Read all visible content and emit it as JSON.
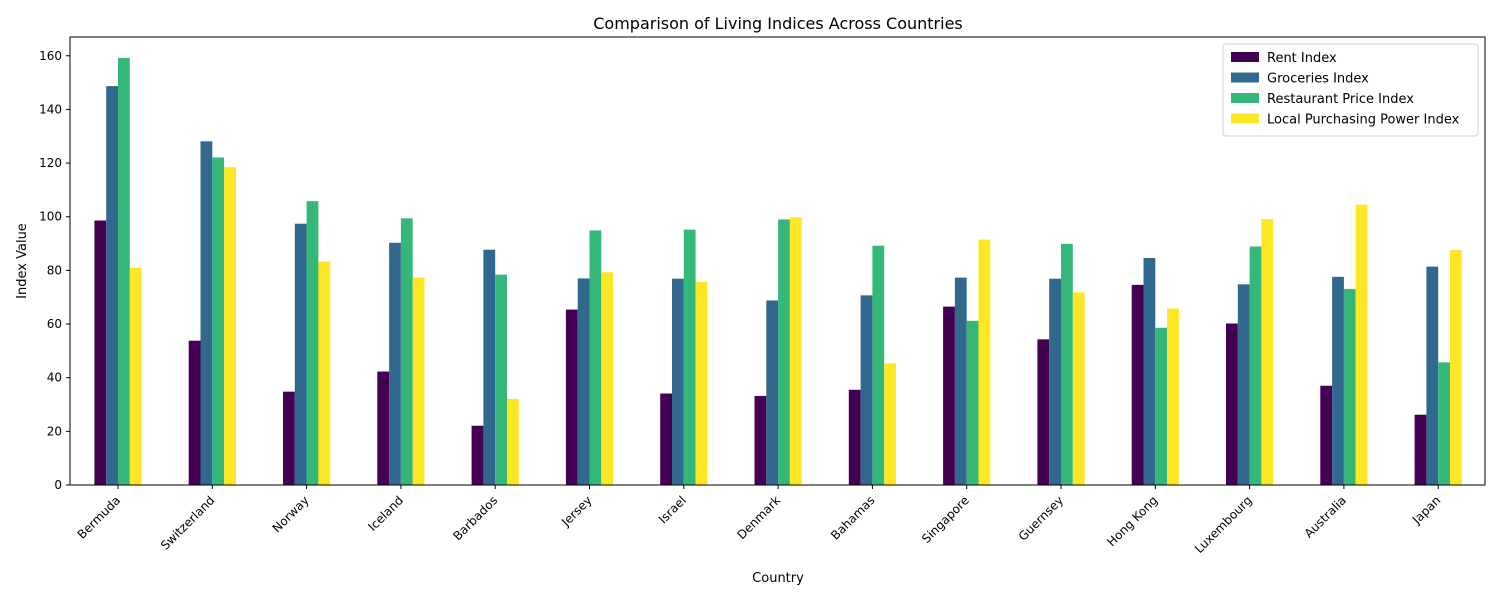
{
  "chart_data": {
    "type": "bar",
    "title": "Comparison of Living Indices Across Countries",
    "xlabel": "Country",
    "ylabel": "Index Value",
    "ylim": [
      0,
      167
    ],
    "yticks": [
      0,
      20,
      40,
      60,
      80,
      100,
      120,
      140,
      160
    ],
    "grid": false,
    "legend_position": "top-right",
    "categories": [
      "Bermuda",
      "Switzerland",
      "Norway",
      "Iceland",
      "Barbados",
      "Jersey",
      "Israel",
      "Denmark",
      "Bahamas",
      "Singapore",
      "Guernsey",
      "Hong Kong",
      "Luxembourg",
      "Australia",
      "Japan"
    ],
    "series": [
      {
        "name": "Rent Index",
        "color": "#440154",
        "values": [
          98.6,
          53.8,
          34.8,
          42.3,
          22.1,
          65.4,
          34.1,
          33.2,
          35.5,
          66.5,
          54.3,
          74.6,
          60.2,
          37.0,
          26.2
        ]
      },
      {
        "name": "Groceries Index",
        "color": "#31688e",
        "values": [
          148.7,
          128.1,
          97.4,
          90.3,
          87.7,
          77.0,
          76.9,
          68.8,
          70.7,
          77.3,
          76.9,
          84.6,
          74.8,
          77.6,
          81.4
        ]
      },
      {
        "name": "Restaurant Price Index",
        "color": "#35b779",
        "values": [
          159.2,
          122.1,
          105.8,
          99.4,
          78.4,
          94.9,
          95.2,
          99.0,
          89.2,
          61.2,
          89.9,
          58.6,
          88.9,
          73.1,
          45.7
        ]
      },
      {
        "name": "Local Purchasing Power Index",
        "color": "#fde725",
        "values": [
          81.0,
          118.5,
          83.3,
          77.3,
          32.1,
          79.3,
          75.7,
          99.8,
          45.3,
          91.5,
          71.8,
          65.8,
          99.1,
          104.5,
          87.6
        ]
      }
    ]
  }
}
